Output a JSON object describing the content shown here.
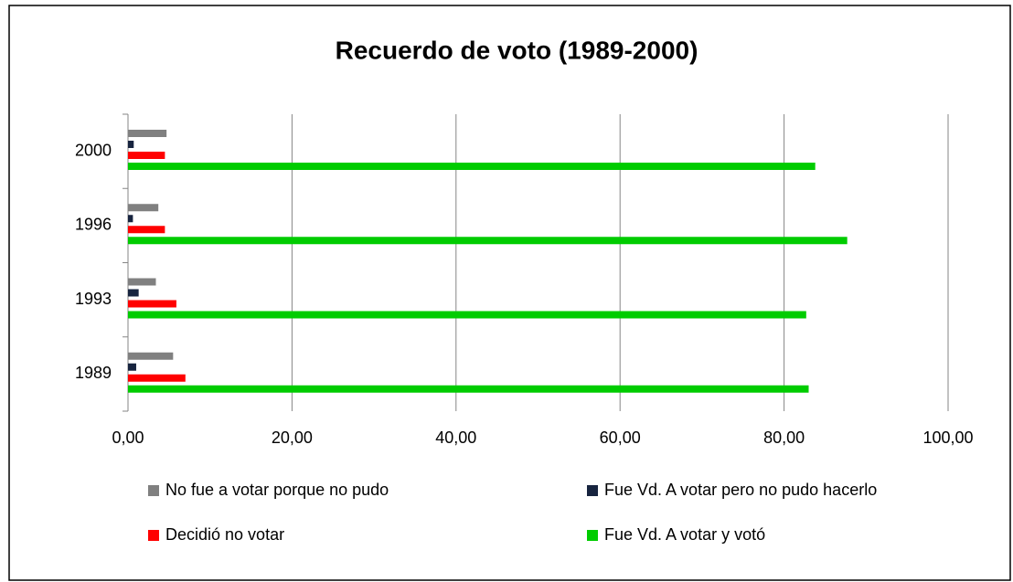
{
  "chart_data": {
    "type": "hbar",
    "title": "Recuerdo de voto (1989-2000)",
    "categories": [
      "1989",
      "1993",
      "1996",
      "2000"
    ],
    "series": [
      {
        "name": "No fue a votar porque no pudo",
        "color": "#808080",
        "values": [
          5.5,
          3.4,
          3.7,
          4.7
        ]
      },
      {
        "name": "Fue Vd. A votar pero no pudo hacerlo",
        "color": "#17243f",
        "values": [
          1.0,
          1.3,
          0.6,
          0.7
        ]
      },
      {
        "name": "Decidió no votar",
        "color": "#ff0000",
        "values": [
          7.0,
          5.9,
          4.5,
          4.5
        ]
      },
      {
        "name": "Fue Vd. A votar y votó",
        "color": "#00cc00",
        "values": [
          83.0,
          82.7,
          87.7,
          83.8
        ]
      }
    ],
    "xlim": [
      0,
      100
    ],
    "xticks": [
      {
        "value": 0,
        "label": "0,00"
      },
      {
        "value": 20,
        "label": "20,00"
      },
      {
        "value": 40,
        "label": "40,00"
      },
      {
        "value": 60,
        "label": "60,00"
      },
      {
        "value": 80,
        "label": "80,00"
      },
      {
        "value": 100,
        "label": "100,00"
      }
    ],
    "grid": true
  }
}
